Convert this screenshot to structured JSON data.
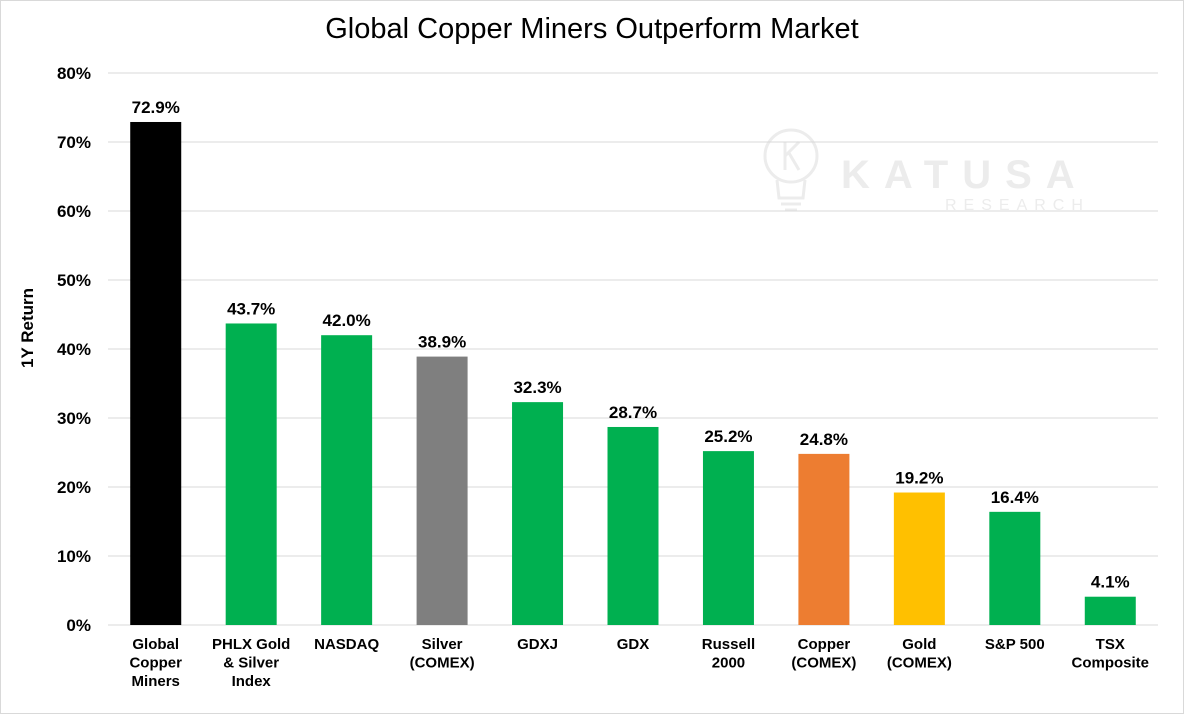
{
  "chart_data": {
    "type": "bar",
    "title": "Global Copper Miners Outperform Market",
    "ylabel": "1Y Return",
    "xlabel": "",
    "ylim": [
      0,
      80
    ],
    "ytick_labels": [
      "0%",
      "10%",
      "20%",
      "30%",
      "40%",
      "50%",
      "60%",
      "70%",
      "80%"
    ],
    "grid": true,
    "categories": [
      [
        "Global",
        "Copper",
        "Miners"
      ],
      [
        "PHLX Gold",
        "& Silver",
        "Index"
      ],
      [
        "NASDAQ"
      ],
      [
        "Silver",
        "(COMEX)"
      ],
      [
        "GDXJ"
      ],
      [
        "GDX"
      ],
      [
        "Russell",
        "2000"
      ],
      [
        "Copper",
        "(COMEX)"
      ],
      [
        "Gold",
        "(COMEX)"
      ],
      [
        "S&P 500"
      ],
      [
        "TSX",
        "Composite"
      ]
    ],
    "values": [
      72.9,
      43.7,
      42.0,
      38.9,
      32.3,
      28.7,
      25.2,
      24.8,
      19.2,
      16.4,
      4.1
    ],
    "data_labels": [
      "72.9%",
      "43.7%",
      "42.0%",
      "38.9%",
      "32.3%",
      "28.7%",
      "25.2%",
      "24.8%",
      "19.2%",
      "16.4%",
      "4.1%"
    ],
    "colors": [
      "#000000",
      "#00b050",
      "#00b050",
      "#7f7f7f",
      "#00b050",
      "#00b050",
      "#00b050",
      "#ed7d31",
      "#ffc000",
      "#00b050",
      "#00b050"
    ]
  },
  "watermark": {
    "name": "KATUSA",
    "sub": "RESEARCH",
    "icon": "lightbulb-k-logo"
  }
}
